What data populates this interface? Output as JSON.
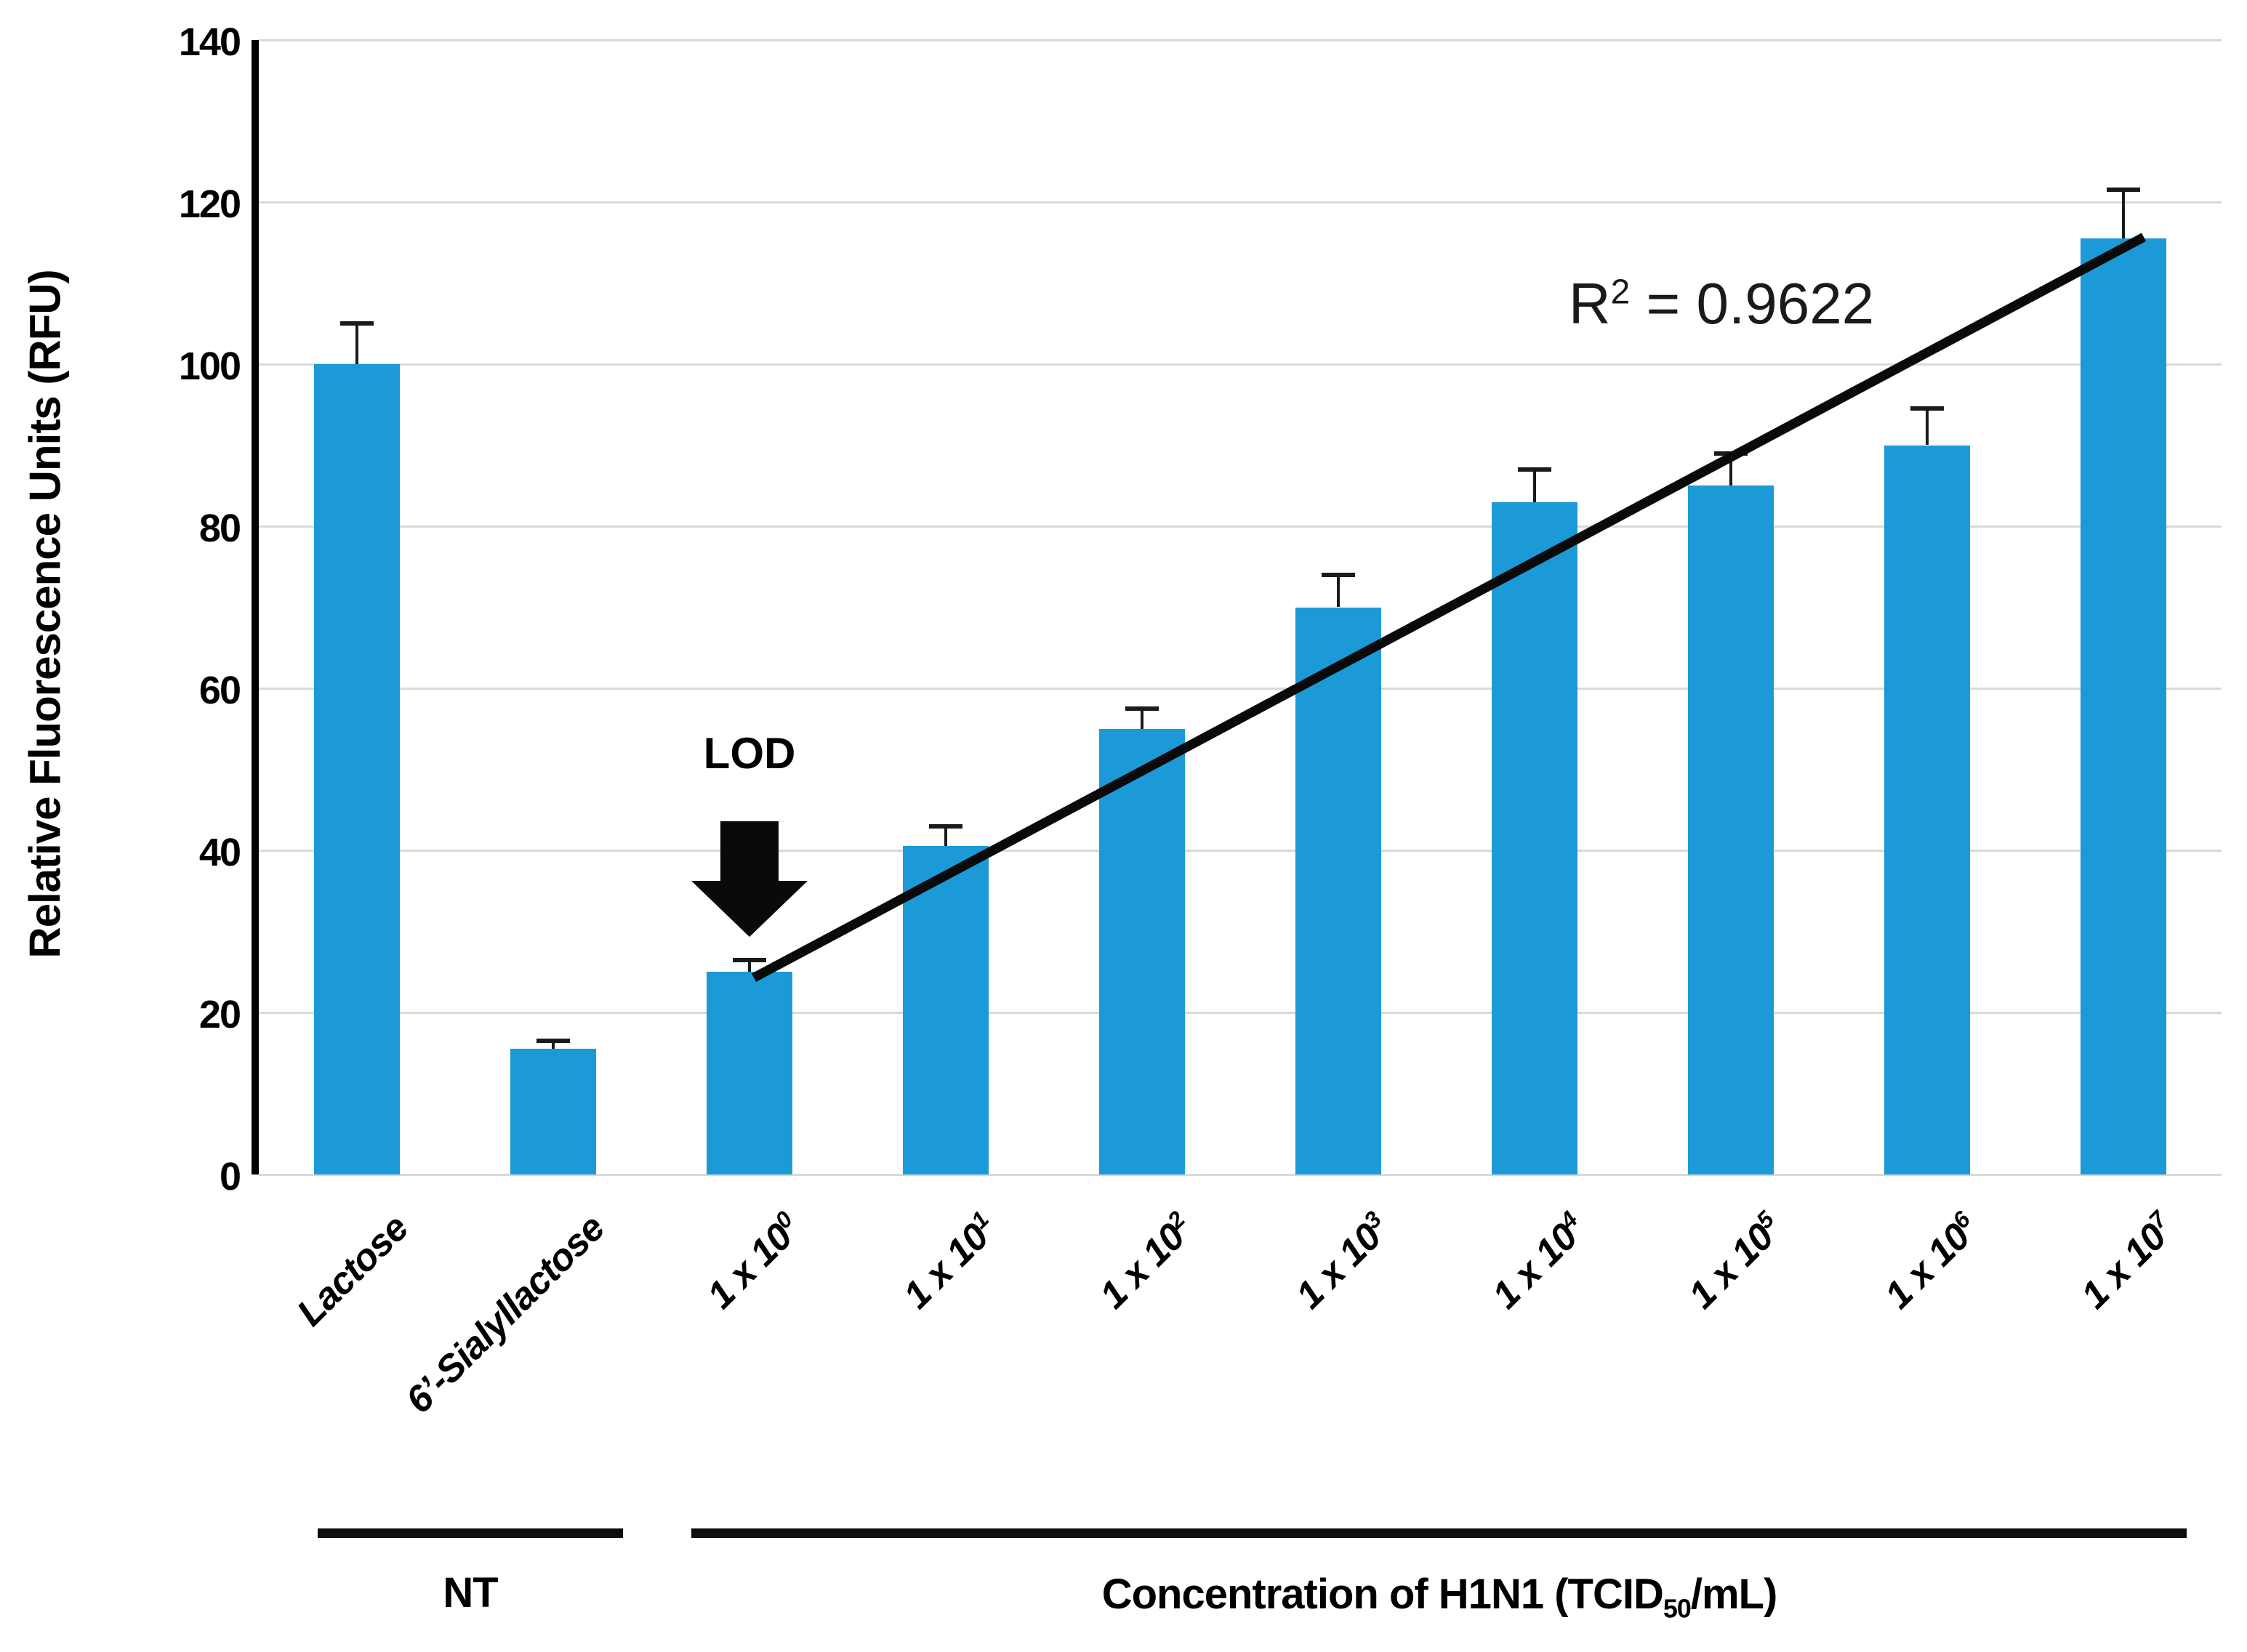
{
  "figure": {
    "r2": {
      "base": "R",
      "sup": "2",
      "rest": " = 0.9622"
    },
    "lod_label": "LOD",
    "group1_label": "NT",
    "group2_label": {
      "pre": "Concentration of H1N1 (TCID",
      "sub": "50",
      "post": "/mL)"
    }
  },
  "chart_data": {
    "type": "bar",
    "title": "",
    "ylabel": "Relative Fluorescence Units (RFU)",
    "xlabel": "Concentration of H1N1 (TCID50/mL)",
    "ylim": [
      0,
      140
    ],
    "yticks": [
      0,
      20,
      40,
      60,
      80,
      100,
      120,
      140
    ],
    "grid": true,
    "legend": "none",
    "bar_color": "#1b9ad7",
    "error_bar_color": "#1a1a1a",
    "categories": [
      "Lactose",
      "6’-Sialyllactose",
      "1 x 10^0",
      "1 x 10^1",
      "1 x 10^2",
      "1 x 10^3",
      "1 x 10^4",
      "1 x 10^5",
      "1 x 10^6",
      "1 x 10^7"
    ],
    "category_parts": [
      {
        "base": "Lactose",
        "exp": ""
      },
      {
        "base": "6’-Sialyllactose",
        "exp": ""
      },
      {
        "base": "1 x 10",
        "exp": "0"
      },
      {
        "base": "1 x 10",
        "exp": "1"
      },
      {
        "base": "1 x 10",
        "exp": "2"
      },
      {
        "base": "1 x 10",
        "exp": "3"
      },
      {
        "base": "1 x 10",
        "exp": "4"
      },
      {
        "base": "1 x 10",
        "exp": "5"
      },
      {
        "base": "1 x 10",
        "exp": "6"
      },
      {
        "base": "1 x 10",
        "exp": "7"
      }
    ],
    "values": [
      100,
      15.5,
      25,
      40.5,
      55,
      70,
      83,
      85,
      90,
      115.5
    ],
    "errors": [
      5,
      1,
      1.5,
      2.5,
      2.5,
      4,
      4,
      4,
      4.5,
      6
    ],
    "groups": [
      {
        "label": "NT",
        "from_index": 0,
        "to_index": 1
      },
      {
        "label": "Concentration of H1N1 (TCID50/mL)",
        "from_index": 2,
        "to_index": 9
      }
    ],
    "trendline": {
      "from_index": 2,
      "from_value": 25,
      "to_index": 9,
      "to_value": 115.5,
      "r2": 0.9622
    },
    "annotations": [
      {
        "text": "LOD",
        "target_index": 2
      },
      {
        "text": "R2 = 0.9622"
      }
    ]
  }
}
